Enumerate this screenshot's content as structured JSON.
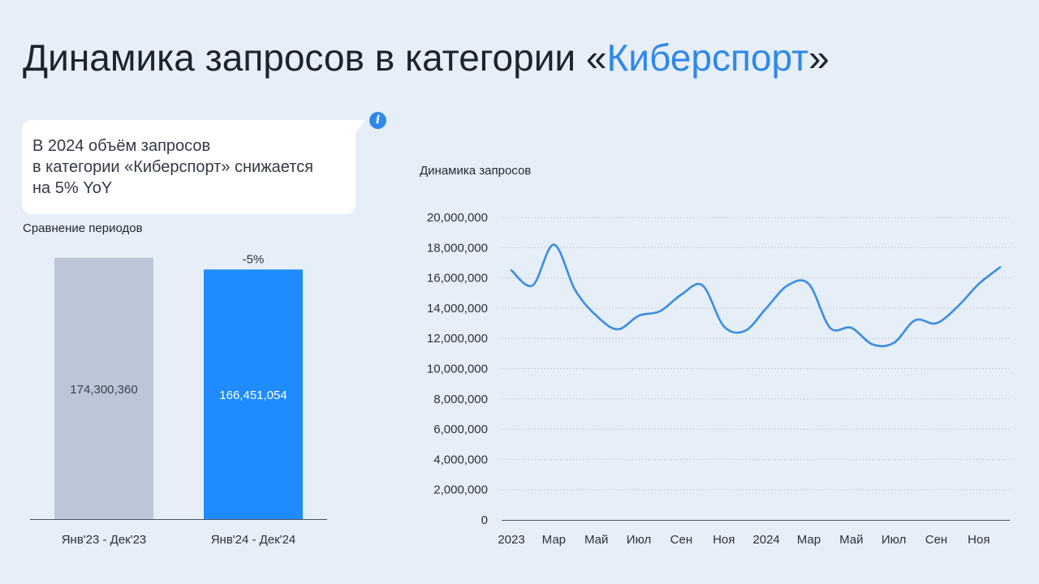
{
  "page": {
    "title_prefix": "Динамика запросов в категории «",
    "title_accent": "Киберспорт",
    "title_suffix": "»"
  },
  "callout": {
    "lines": [
      "В 2024 объём запросов",
      "в категории «Киберспорт» снижается",
      "на 5% YoY"
    ],
    "info_icon": "info-icon"
  },
  "colors": {
    "accent": "#2f88e8",
    "bar_previous": "#bcc6d6",
    "bar_current": "#1f8bff",
    "line": "#3a8de0",
    "grid": "#c9d0da"
  },
  "chart_data": [
    {
      "type": "bar",
      "title": "Сравнение периодов",
      "categories": [
        "Янв'23 - Дек'23",
        "Янв'24 - Дек'24"
      ],
      "values": [
        174300360,
        166451054
      ],
      "value_labels": [
        "174,300,360",
        "166,451,054"
      ],
      "change_label": "-5%",
      "ylim": [
        0,
        185000000
      ]
    },
    {
      "type": "line",
      "title": "Динамика запросов",
      "x": [
        "2023-01",
        "2023-02",
        "2023-03",
        "2023-04",
        "2023-05",
        "2023-06",
        "2023-07",
        "2023-08",
        "2023-09",
        "2023-10",
        "2023-11",
        "2023-12",
        "2024-01",
        "2024-02",
        "2024-03",
        "2024-04",
        "2024-05",
        "2024-06",
        "2024-07",
        "2024-08",
        "2024-09",
        "2024-10",
        "2024-11",
        "2024-12"
      ],
      "series": [
        {
          "values": [
            16500000,
            15500000,
            18200000,
            15200000,
            13500000,
            12600000,
            13500000,
            13800000,
            14900000,
            15500000,
            12800000,
            12500000,
            14000000,
            15500000,
            15600000,
            12700000,
            12700000,
            11600000,
            11700000,
            13200000,
            13000000,
            14100000,
            15600000,
            16700000
          ]
        }
      ],
      "x_tick_labels": [
        "2023",
        "Мар",
        "Май",
        "Июл",
        "Сен",
        "Ноя",
        "2024",
        "Мар",
        "Май",
        "Июл",
        "Сен",
        "Ноя"
      ],
      "y_tick_labels": [
        "0",
        "2,000,000",
        "4,000,000",
        "6,000,000",
        "8,000,000",
        "10,000,000",
        "12,000,000",
        "14,000,000",
        "16,000,000",
        "18,000,000",
        "20,000,000"
      ],
      "ylim": [
        0,
        20000000
      ],
      "grid": true
    }
  ]
}
